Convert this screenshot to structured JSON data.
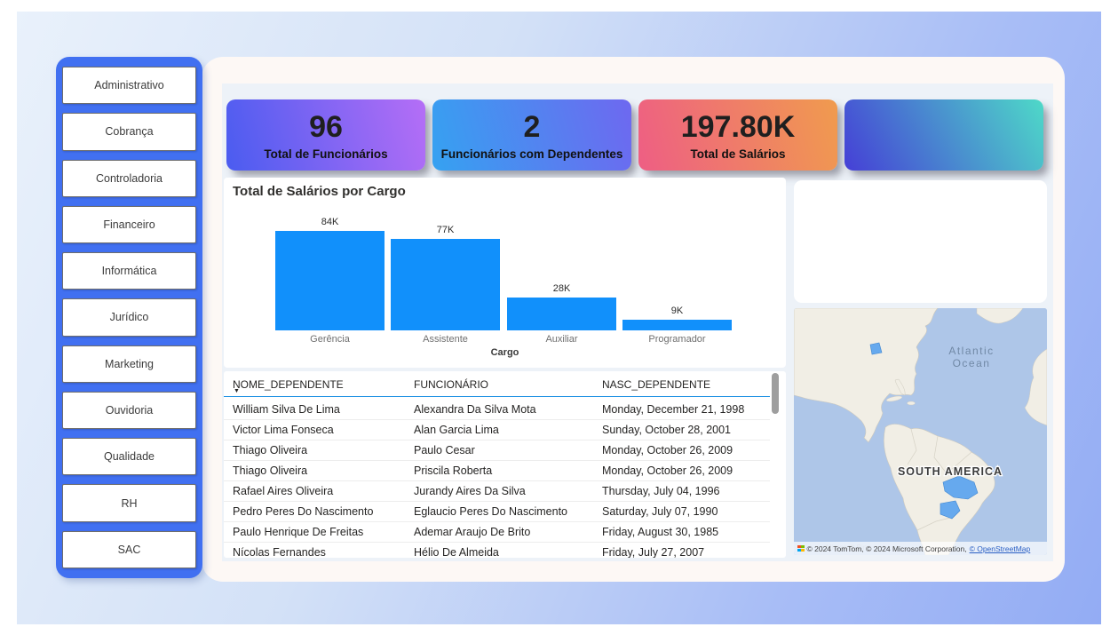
{
  "sidebar": {
    "items": [
      {
        "id": "administrativo",
        "label": "Administrativo"
      },
      {
        "id": "cobranca",
        "label": "Cobrança"
      },
      {
        "id": "controladoria",
        "label": "Controladoria"
      },
      {
        "id": "financeiro",
        "label": "Financeiro"
      },
      {
        "id": "informatica",
        "label": "Informática"
      },
      {
        "id": "juridico",
        "label": "Jurídico"
      },
      {
        "id": "marketing",
        "label": "Marketing"
      },
      {
        "id": "ouvidoria",
        "label": "Ouvidoria"
      },
      {
        "id": "qualidade",
        "label": "Qualidade"
      },
      {
        "id": "rh",
        "label": "RH"
      },
      {
        "id": "sac",
        "label": "SAC"
      }
    ],
    "background_color": "#4170f1"
  },
  "kpi_cards": [
    {
      "value": "96",
      "label": "Total de Funcionários",
      "angle": "75deg",
      "gradient": [
        "#4a5cf0",
        "#b56ef6"
      ]
    },
    {
      "value": "2",
      "label": "Funcionários com Dependentes",
      "angle": "75deg",
      "gradient": [
        "#35a2f1",
        "#6e68f0"
      ]
    },
    {
      "value": "197.80K",
      "label": "Total de Salários",
      "angle": "75deg",
      "gradient": [
        "#ee5e84",
        "#f09b4e"
      ]
    },
    {
      "value": "",
      "label": "",
      "angle": "60deg",
      "gradient": [
        "#453fd6",
        "#4ed9c8"
      ]
    }
  ],
  "chart_data": {
    "type": "bar",
    "title": "Total de Salários por Cargo",
    "categories": [
      "Gerência",
      "Assistente",
      "Auxiliar",
      "Programador"
    ],
    "values": [
      84000,
      77000,
      28000,
      9000
    ],
    "data_labels": [
      "84K",
      "77K",
      "28K",
      "9K"
    ],
    "xlabel": "Cargo",
    "ylabel": "",
    "ylim": [
      0,
      90000
    ],
    "grid": false,
    "legend": false,
    "bar_color": "#1190fb"
  },
  "table": {
    "columns": [
      "NOME_DEPENDENTE",
      "FUNCIONÁRIO",
      "NASC_DEPENDENTE"
    ],
    "sorted_column": "NOME_DEPENDENTE",
    "sort_direction": "desc",
    "rows": [
      [
        "William Silva De Lima",
        "Alexandra Da Silva Mota",
        "Monday, December 21, 1998"
      ],
      [
        "Victor Lima Fonseca",
        "Alan Garcia Lima",
        "Sunday, October 28, 2001"
      ],
      [
        "Thiago Oliveira",
        "Paulo Cesar",
        "Monday, October 26, 2009"
      ],
      [
        "Thiago Oliveira",
        "Priscila Roberta",
        "Monday, October 26, 2009"
      ],
      [
        "Rafael Aires Oliveira",
        "Jurandy Aires Da Silva",
        "Thursday, July 04, 1996"
      ],
      [
        "Pedro Peres Do Nascimento",
        "Eglaucio Peres Do Nascimento",
        "Saturday, July 07, 1990"
      ],
      [
        "Paulo Henrique De Freitas",
        "Ademar Araujo De Brito",
        "Friday, August 30, 1985"
      ],
      [
        "Nícolas Fernandes",
        "Hélio De Almeida",
        "Friday, July 27, 2007"
      ]
    ]
  },
  "map": {
    "ocean_label": "Atlantic Ocean",
    "continent_label": "SOUTH AMERICA",
    "highlight_color": "#66a9ee",
    "attribution_text": "© 2024 TomTom, © 2024 Microsoft Corporation,",
    "attribution_link": "© OpenStreetMap"
  }
}
